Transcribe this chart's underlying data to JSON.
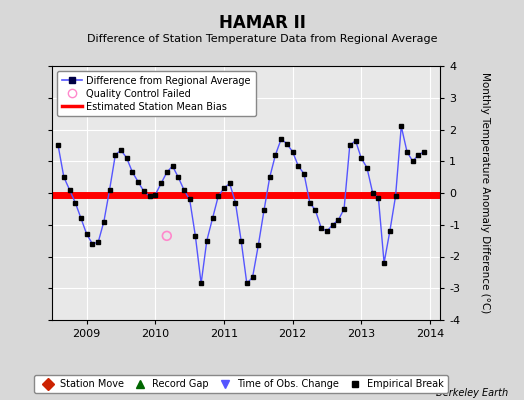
{
  "title": "HAMAR II",
  "subtitle": "Difference of Station Temperature Data from Regional Average",
  "ylabel_right": "Monthly Temperature Anomaly Difference (°C)",
  "ylim": [
    -4,
    4
  ],
  "bias_value": -0.05,
  "background_color": "#d8d8d8",
  "plot_bg_color": "#e8e8e8",
  "line_color": "#5555ff",
  "marker_color": "#000000",
  "bias_color": "#ff0000",
  "qc_failed_x": 2010.167,
  "qc_failed_y": -1.35,
  "berkeley_earth_text": "Berkeley Earth",
  "times": [
    2008.583,
    2008.667,
    2008.75,
    2008.833,
    2008.917,
    2009.0,
    2009.083,
    2009.167,
    2009.25,
    2009.333,
    2009.417,
    2009.5,
    2009.583,
    2009.667,
    2009.75,
    2009.833,
    2009.917,
    2010.0,
    2010.083,
    2010.167,
    2010.25,
    2010.333,
    2010.417,
    2010.5,
    2010.583,
    2010.667,
    2010.75,
    2010.833,
    2010.917,
    2011.0,
    2011.083,
    2011.167,
    2011.25,
    2011.333,
    2011.417,
    2011.5,
    2011.583,
    2011.667,
    2011.75,
    2011.833,
    2011.917,
    2012.0,
    2012.083,
    2012.167,
    2012.25,
    2012.333,
    2012.417,
    2012.5,
    2012.583,
    2012.667,
    2012.75,
    2012.833,
    2012.917,
    2013.0,
    2013.083,
    2013.167,
    2013.25,
    2013.333,
    2013.417,
    2013.5,
    2013.583,
    2013.667,
    2013.75,
    2013.833,
    2013.917
  ],
  "values": [
    1.5,
    0.5,
    0.1,
    -0.3,
    -0.8,
    -1.3,
    -1.6,
    -1.55,
    -0.9,
    0.1,
    1.2,
    1.35,
    1.1,
    0.65,
    0.35,
    0.05,
    -0.1,
    -0.05,
    0.3,
    0.65,
    0.85,
    0.5,
    0.1,
    -0.2,
    -1.35,
    -2.85,
    -1.5,
    -0.8,
    -0.1,
    0.15,
    0.3,
    -0.3,
    -1.5,
    -2.85,
    -2.65,
    -1.65,
    -0.55,
    0.5,
    1.2,
    1.7,
    1.55,
    1.3,
    0.85,
    0.6,
    -0.3,
    -0.55,
    -1.1,
    -1.2,
    -1.0,
    -0.85,
    -0.5,
    1.5,
    1.65,
    1.1,
    0.8,
    0.0,
    -0.15,
    -2.2,
    -1.2,
    -0.1,
    2.1,
    1.3,
    1.0,
    1.2,
    1.3
  ],
  "grid_color": "#ffffff",
  "xticks": [
    2009,
    2010,
    2011,
    2012,
    2013,
    2014
  ],
  "yticks": [
    -4,
    -3,
    -2,
    -1,
    0,
    1,
    2,
    3,
    4
  ]
}
